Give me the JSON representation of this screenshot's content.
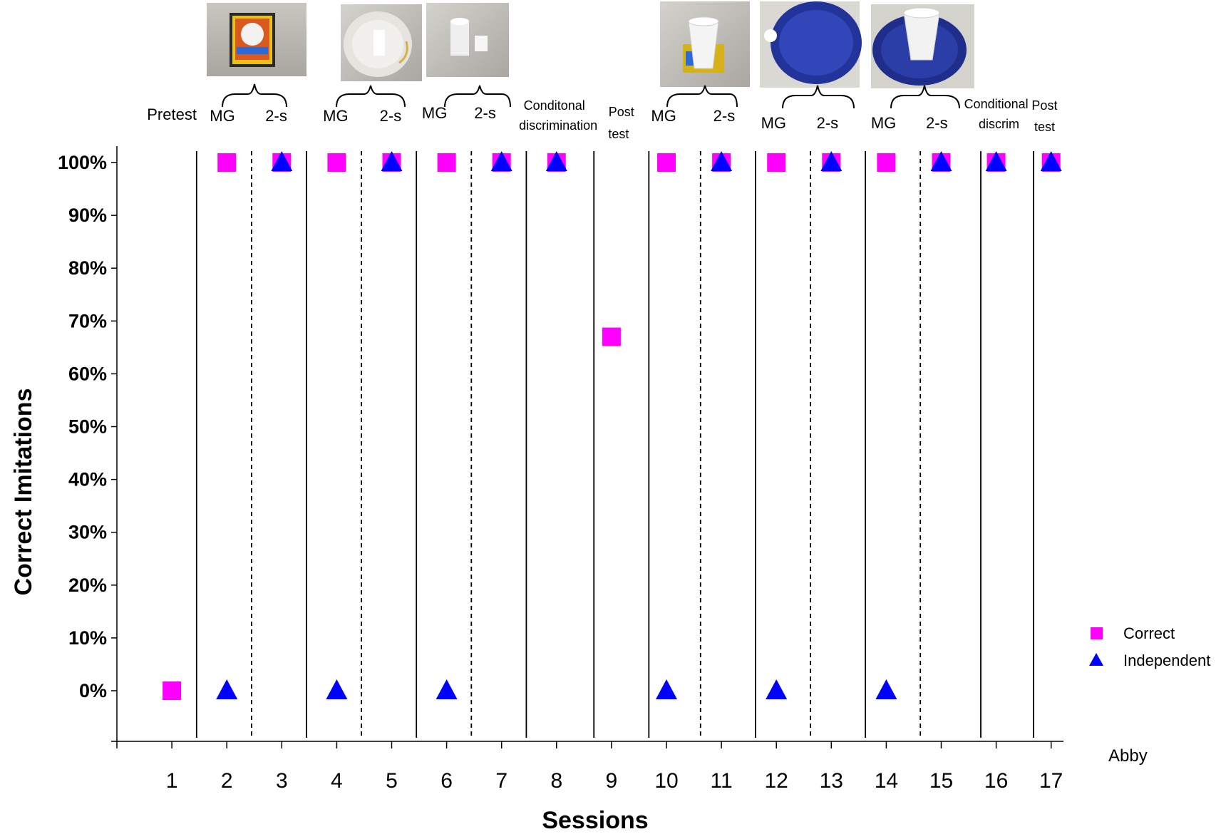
{
  "chart_data": {
    "type": "scatter",
    "xlabel": "Sessions",
    "ylabel": "Correct Imitations",
    "participant": "Abby",
    "x_ticks": [
      "1",
      "2",
      "3",
      "4",
      "5",
      "6",
      "7",
      "8",
      "9",
      "10",
      "11",
      "12",
      "13",
      "14",
      "15",
      "16",
      "17"
    ],
    "y_ticks": [
      "0%",
      "10%",
      "20%",
      "30%",
      "40%",
      "50%",
      "60%",
      "70%",
      "80%",
      "90%",
      "100%"
    ],
    "xlim": [
      0,
      17
    ],
    "ylim": [
      -10,
      100
    ],
    "grid": false,
    "legend_position": "right",
    "series": [
      {
        "name": "Correct",
        "marker": "square",
        "color": "#ff00ff",
        "points": [
          [
            1,
            0
          ],
          [
            2,
            100
          ],
          [
            3,
            100
          ],
          [
            4,
            100
          ],
          [
            5,
            100
          ],
          [
            6,
            100
          ],
          [
            7,
            100
          ],
          [
            8,
            100
          ],
          [
            9,
            67
          ],
          [
            10,
            100
          ],
          [
            11,
            100
          ],
          [
            12,
            100
          ],
          [
            13,
            100
          ],
          [
            14,
            100
          ],
          [
            15,
            100
          ],
          [
            16,
            100
          ],
          [
            17,
            100
          ]
        ]
      },
      {
        "name": "Independent",
        "marker": "triangle",
        "color": "#0000ff",
        "points": [
          [
            2,
            0
          ],
          [
            3,
            100
          ],
          [
            4,
            0
          ],
          [
            5,
            100
          ],
          [
            6,
            0
          ],
          [
            7,
            100
          ],
          [
            8,
            100
          ],
          [
            10,
            0
          ],
          [
            11,
            100
          ],
          [
            12,
            0
          ],
          [
            13,
            100
          ],
          [
            14,
            0
          ],
          [
            15,
            100
          ],
          [
            16,
            100
          ],
          [
            17,
            100
          ]
        ]
      }
    ],
    "phase_lines": [
      {
        "x": 1.45,
        "style": "solid"
      },
      {
        "x": 2.45,
        "style": "dashed"
      },
      {
        "x": 3.45,
        "style": "solid"
      },
      {
        "x": 4.45,
        "style": "dashed"
      },
      {
        "x": 5.45,
        "style": "solid"
      },
      {
        "x": 6.45,
        "style": "dashed"
      },
      {
        "x": 7.45,
        "style": "solid"
      },
      {
        "x": 8.68,
        "style": "solid"
      },
      {
        "x": 9.68,
        "style": "solid"
      },
      {
        "x": 10.62,
        "style": "dashed"
      },
      {
        "x": 11.62,
        "style": "solid"
      },
      {
        "x": 12.62,
        "style": "dashed"
      },
      {
        "x": 13.62,
        "style": "solid"
      },
      {
        "x": 14.62,
        "style": "dashed"
      },
      {
        "x": 15.72,
        "style": "solid"
      },
      {
        "x": 16.68,
        "style": "solid"
      }
    ],
    "phase_labels": [
      {
        "text": "Pretest",
        "x": 1.0
      },
      {
        "text": "MG",
        "x": 1.92
      },
      {
        "text": "2-s",
        "x": 2.9
      },
      {
        "text": "MG",
        "x": 3.98
      },
      {
        "text": "2-s",
        "x": 4.98
      },
      {
        "text": "MG",
        "x": 5.78
      },
      {
        "text": "2-s",
        "x": 6.7
      },
      {
        "text": "Conditonal",
        "x": 7.96
      },
      {
        "text": "discrimination",
        "x": 8.03
      },
      {
        "text": "Post",
        "x": 9.18
      },
      {
        "text": "test",
        "x": 9.13
      },
      {
        "text": "MG",
        "x": 9.95
      },
      {
        "text": "2-s",
        "x": 11.05
      },
      {
        "text": "MG",
        "x": 11.95
      },
      {
        "text": "2-s",
        "x": 12.93
      },
      {
        "text": "MG",
        "x": 13.95
      },
      {
        "text": "2-s",
        "x": 14.92
      },
      {
        "text": "Conditional",
        "x": 16.0
      },
      {
        "text": "discrim",
        "x": 16.05
      },
      {
        "text": "Post",
        "x": 16.88
      },
      {
        "text": "test",
        "x": 16.88
      }
    ],
    "stimulus_photos": [
      {
        "name": "crayon-box-photo",
        "depicts": "box with light bulb"
      },
      {
        "name": "plate-ring-photo",
        "depicts": "white plate with objects"
      },
      {
        "name": "cup-on-plate-photo",
        "depicts": "white cups"
      },
      {
        "name": "cup-on-box-photo",
        "depicts": "cup on box"
      },
      {
        "name": "blue-plate-photo",
        "depicts": "blue plate"
      },
      {
        "name": "cup-on-blue-plate-photo",
        "depicts": "cup on blue plate"
      }
    ]
  }
}
